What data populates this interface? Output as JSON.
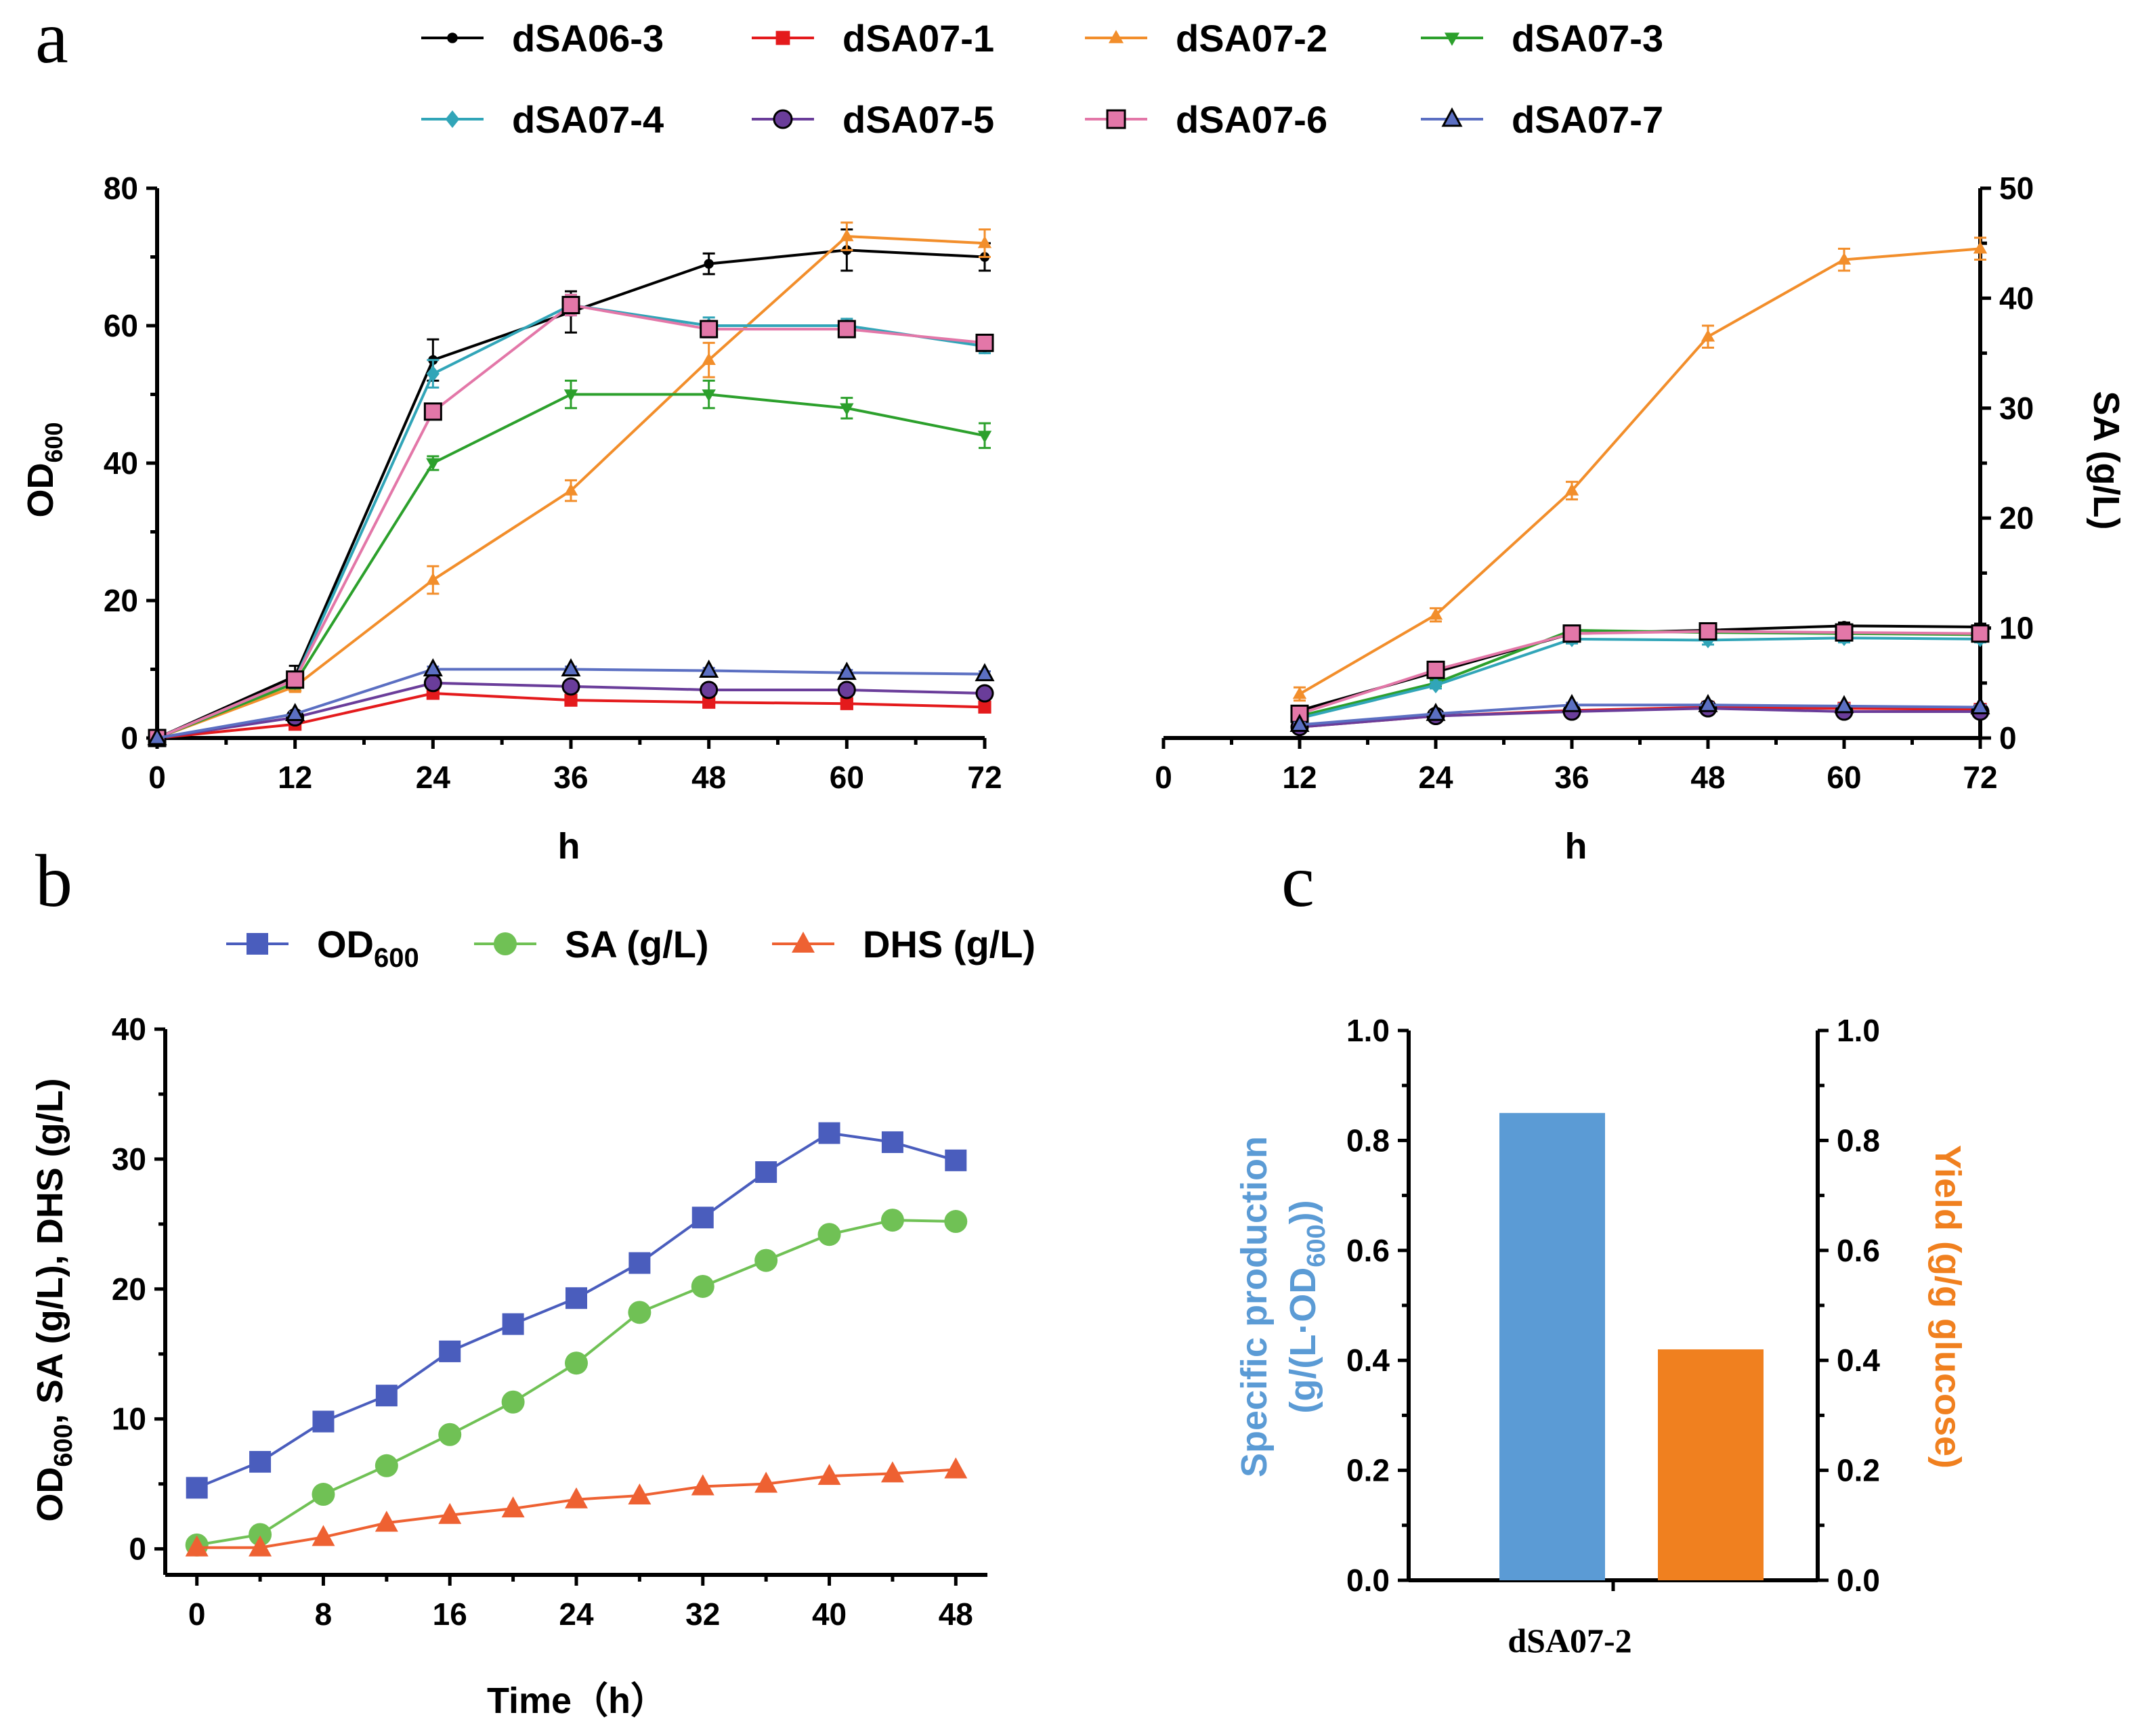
{
  "panel_labels": {
    "a": "a",
    "b": "b",
    "c": "c"
  },
  "chart_data": [
    {
      "id": "a_left",
      "type": "line",
      "xlabel": "h",
      "ylabel": "OD600",
      "x": [
        0,
        12,
        24,
        36,
        48,
        60,
        72
      ],
      "xlim": [
        0,
        72
      ],
      "ylim": [
        0,
        80
      ],
      "xticks": [
        "0",
        "12",
        "24",
        "36",
        "48",
        "60",
        "72"
      ],
      "yticks": [
        "0",
        "20",
        "40",
        "60",
        "80"
      ],
      "series": [
        {
          "name": "dSA06-3",
          "color": "#000000",
          "marker": "dot",
          "values": [
            0,
            9,
            55,
            62,
            69,
            71,
            70
          ],
          "errors": [
            0,
            1.5,
            3,
            3,
            1.5,
            3,
            2
          ]
        },
        {
          "name": "dSA07-1",
          "color": "#e41a1c",
          "marker": "square-small",
          "values": [
            0,
            2,
            6.5,
            5.5,
            5.2,
            5,
            4.5
          ],
          "errors": [
            0,
            0.3,
            0.5,
            0.4,
            0.4,
            0.4,
            0.4
          ]
        },
        {
          "name": "dSA07-2",
          "color": "#f28e2b",
          "marker": "triangle-up",
          "values": [
            0,
            7.5,
            23,
            36,
            55,
            73,
            72
          ],
          "errors": [
            0,
            0.8,
            2,
            1.5,
            2.5,
            2,
            2
          ]
        },
        {
          "name": "dSA07-3",
          "color": "#2ca02c",
          "marker": "triangle-down",
          "values": [
            0,
            8,
            40,
            50,
            50,
            48,
            44
          ],
          "errors": [
            0,
            0.8,
            1,
            2,
            2,
            1.5,
            1.8
          ]
        },
        {
          "name": "dSA07-4",
          "color": "#31a5b8",
          "marker": "diamond",
          "values": [
            0,
            8.5,
            53,
            63,
            60,
            60,
            57
          ],
          "errors": [
            0,
            0.8,
            2,
            1.5,
            1.2,
            1,
            1
          ]
        },
        {
          "name": "dSA07-5",
          "color": "#6a3d9a",
          "marker": "circle",
          "values": [
            0,
            3,
            8,
            7.5,
            7,
            7,
            6.5
          ],
          "errors": [
            0,
            0.3,
            0.4,
            0.4,
            0.4,
            0.4,
            0.4
          ]
        },
        {
          "name": "dSA07-6",
          "color": "#e377a8",
          "marker": "square",
          "values": [
            0,
            8.5,
            47.5,
            63,
            59.5,
            59.5,
            57.5
          ],
          "errors": [
            0,
            0.8,
            1,
            1.5,
            1.2,
            1,
            1
          ]
        },
        {
          "name": "dSA07-7",
          "color": "#5b6fc2",
          "marker": "triangle",
          "values": [
            0,
            3.5,
            10,
            10,
            9.8,
            9.5,
            9.3
          ],
          "errors": [
            0,
            0.3,
            0.4,
            0.4,
            0.4,
            0.4,
            0.4
          ]
        }
      ]
    },
    {
      "id": "a_right",
      "type": "line",
      "xlabel": "h",
      "ylabel": "SA (g/L)",
      "x": [
        12,
        24,
        36,
        48,
        60,
        72
      ],
      "xlim": [
        0,
        72
      ],
      "ylim": [
        0,
        50
      ],
      "xticks": [
        "0",
        "12",
        "24",
        "36",
        "48",
        "60",
        "72"
      ],
      "yticks": [
        "0",
        "10",
        "20",
        "30",
        "40",
        "50"
      ],
      "series": [
        {
          "name": "dSA06-3",
          "color": "#000000",
          "marker": "dot",
          "values": [
            2.5,
            6,
            9.5,
            9.8,
            10.2,
            10.1
          ],
          "errors": [
            0.3,
            0.4,
            0.4,
            0.4,
            0.3,
            0.3
          ]
        },
        {
          "name": "dSA07-1",
          "color": "#e41a1c",
          "marker": "square-small",
          "values": [
            1,
            2,
            2.5,
            2.8,
            2.7,
            2.6
          ],
          "errors": [
            0.2,
            0.2,
            0.2,
            0.2,
            0.2,
            0.2
          ]
        },
        {
          "name": "dSA07-2",
          "color": "#f28e2b",
          "marker": "triangle-up",
          "values": [
            4,
            11.2,
            22.5,
            36.5,
            43.5,
            44.5
          ],
          "errors": [
            0.6,
            0.6,
            0.8,
            1,
            1,
            1
          ]
        },
        {
          "name": "dSA07-3",
          "color": "#2ca02c",
          "marker": "triangle-down",
          "values": [
            2,
            5,
            9.8,
            9.6,
            9.5,
            9.4
          ],
          "errors": [
            0.3,
            0.3,
            0.4,
            0.4,
            0.4,
            0.3
          ]
        },
        {
          "name": "dSA07-4",
          "color": "#31a5b8",
          "marker": "diamond",
          "values": [
            1.8,
            4.8,
            9,
            8.9,
            9.1,
            9
          ],
          "errors": [
            0.3,
            0.3,
            0.4,
            0.4,
            0.4,
            0.3
          ]
        },
        {
          "name": "dSA07-5",
          "color": "#6a3d9a",
          "marker": "circle",
          "values": [
            1,
            2,
            2.4,
            2.7,
            2.4,
            2.4
          ],
          "errors": [
            0.2,
            0.2,
            0.2,
            0.2,
            0.2,
            0.2
          ]
        },
        {
          "name": "dSA07-6",
          "color": "#e377a8",
          "marker": "square",
          "values": [
            2.2,
            6.2,
            9.5,
            9.7,
            9.6,
            9.5
          ],
          "errors": [
            0.3,
            0.3,
            0.4,
            0.4,
            0.3,
            0.3
          ]
        },
        {
          "name": "dSA07-7",
          "color": "#5b6fc2",
          "marker": "triangle",
          "values": [
            1.2,
            2.2,
            3,
            3,
            2.9,
            2.8
          ],
          "errors": [
            0.2,
            0.2,
            0.2,
            0.2,
            0.2,
            0.2
          ]
        }
      ]
    },
    {
      "id": "b",
      "type": "line",
      "xlabel": "Time（h）",
      "ylabel": "OD600, SA (g/L), DHS (g/L)",
      "x": [
        0,
        4,
        8,
        12,
        16,
        20,
        24,
        28,
        32,
        36,
        40,
        44,
        48
      ],
      "xlim": [
        -2,
        50
      ],
      "ylim": [
        -2,
        40
      ],
      "xticks": [
        "0",
        "8",
        "16",
        "24",
        "32",
        "40",
        "48"
      ],
      "yticks": [
        "0",
        "10",
        "20",
        "30",
        "40"
      ],
      "series": [
        {
          "name": "OD600",
          "color": "#4a5dbd",
          "marker": "square",
          "values": [
            4.7,
            6.7,
            9.8,
            11.8,
            15.2,
            17.3,
            19.3,
            22,
            25.5,
            29,
            32,
            31.3,
            29.9
          ]
        },
        {
          "name": "SA (g/L)",
          "color": "#70c155",
          "marker": "circle",
          "values": [
            0.3,
            1.1,
            4.2,
            6.4,
            8.8,
            11.3,
            14.3,
            18.2,
            20.2,
            22.2,
            24.2,
            25.3,
            25.2
          ]
        },
        {
          "name": "DHS (g/L)",
          "color": "#ee6132",
          "marker": "triangle",
          "values": [
            0.1,
            0.1,
            0.9,
            2,
            2.6,
            3.1,
            3.8,
            4.1,
            4.8,
            5,
            5.6,
            5.8,
            6.1
          ]
        }
      ]
    },
    {
      "id": "c",
      "type": "bar",
      "categories": [
        "dSA07-2"
      ],
      "ylabel_left": "Specific production (g/(L·OD600))",
      "ylabel_right": "Yield (g/g glucose)",
      "ylim": [
        0,
        1.0
      ],
      "yticks": [
        "0.0",
        "0.2",
        "0.4",
        "0.6",
        "0.8",
        "1.0"
      ],
      "series": [
        {
          "name": "Specific production",
          "color": "#5b9bd5",
          "values": [
            0.85
          ]
        },
        {
          "name": "Yield",
          "color": "#f0801f",
          "values": [
            0.42
          ]
        }
      ]
    }
  ]
}
